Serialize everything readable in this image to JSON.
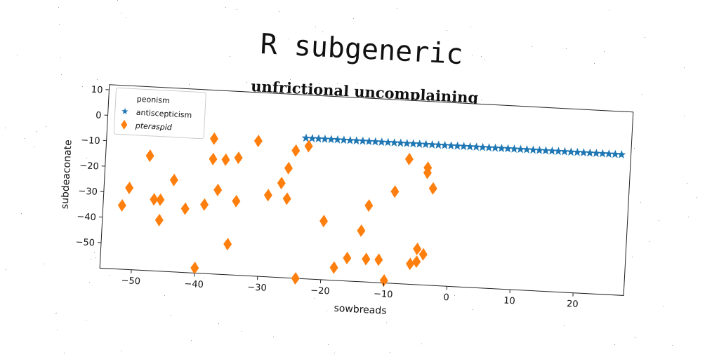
{
  "title": "R subgeneric",
  "subtitle": "unfrictional uncomplaining",
  "chart_data": {
    "type": "scatter",
    "xlabel": "sowbreads",
    "ylabel": "subdeaconate",
    "xlim": [
      -55,
      28
    ],
    "ylim": [
      -60,
      12
    ],
    "xticks": [
      -50,
      -40,
      -30,
      -20,
      -10,
      0,
      10,
      20
    ],
    "yticks": [
      10,
      0,
      -10,
      -20,
      -30,
      -40,
      -50
    ],
    "legend": {
      "position": "top-left",
      "entries": [
        "peonism",
        "antiscepticism",
        "pteraspid"
      ]
    },
    "series": [
      {
        "name": "peonism",
        "marker": "none",
        "color": "#1f77b4",
        "x": [],
        "y": []
      },
      {
        "name": "antiscepticism",
        "marker": "star",
        "color": "#1f77b4",
        "x": [
          -23.5,
          -22.5,
          -21.5,
          -20.5,
          -19.5,
          -18.5,
          -17.5,
          -16.5,
          -15.5,
          -14.5,
          -13.5,
          -12.5,
          -11.5,
          -10.5,
          -9.5,
          -8.5,
          -7.5,
          -6.5,
          -5.5,
          -4.5,
          -3.5,
          -2.5,
          -1.5,
          -0.5,
          0.5,
          1.5,
          2.5,
          3.5,
          4.5,
          5.5,
          6.5,
          7.5,
          8.5,
          9.5,
          10.5,
          11.5,
          12.5,
          13.5,
          14.5,
          15.5,
          16.5,
          17.5,
          18.5,
          19.5,
          20.5,
          21.5,
          22.5,
          23.5,
          24.5,
          25.5,
          26.5
        ],
        "y": [
          -4.9,
          -4.9,
          -4.9,
          -4.9,
          -4.9,
          -4.9,
          -4.9,
          -4.9,
          -4.9,
          -4.9,
          -4.9,
          -4.9,
          -4.9,
          -4.9,
          -4.9,
          -4.9,
          -4.9,
          -4.9,
          -4.9,
          -4.9,
          -4.9,
          -4.9,
          -4.9,
          -4.9,
          -4.9,
          -4.9,
          -4.9,
          -4.9,
          -4.9,
          -4.9,
          -4.9,
          -4.9,
          -4.9,
          -4.9,
          -4.9,
          -4.9,
          -4.9,
          -4.9,
          -4.9,
          -4.9,
          -4.9,
          -4.9,
          -4.9,
          -4.9,
          -4.9,
          -4.9,
          -4.9,
          -4.9,
          -4.9,
          -4.9,
          -4.9
        ]
      },
      {
        "name": "pteraspid",
        "marker": "diamond",
        "color": "#ff7f0e",
        "x": [
          -52,
          -51,
          -48,
          -47,
          -46,
          -46,
          -44,
          -42,
          -40,
          -39,
          -38,
          -38,
          -37,
          -36,
          -35,
          -34,
          -34,
          -31,
          -29,
          -27,
          -26,
          -26,
          -25,
          -24,
          -23,
          -20,
          -18,
          -16,
          -14,
          -13,
          -13,
          -13,
          -11,
          -10,
          -9,
          -7,
          -6,
          -5,
          -5,
          -4,
          -4,
          -4,
          -3
        ],
        "y": [
          -35,
          -28,
          -15,
          -32,
          -32,
          -40,
          -24,
          -35,
          -58,
          -33,
          -7,
          -15,
          -27,
          -15,
          -48,
          -14,
          -31,
          -7,
          -28,
          -23,
          -17,
          -29,
          -10,
          -60,
          -8,
          -37,
          -55,
          -51,
          -40,
          -30,
          -51,
          -51,
          -51,
          -59,
          -24,
          -11,
          -52,
          -51,
          -46,
          -14,
          -16,
          -48,
          -22
        ]
      }
    ]
  }
}
